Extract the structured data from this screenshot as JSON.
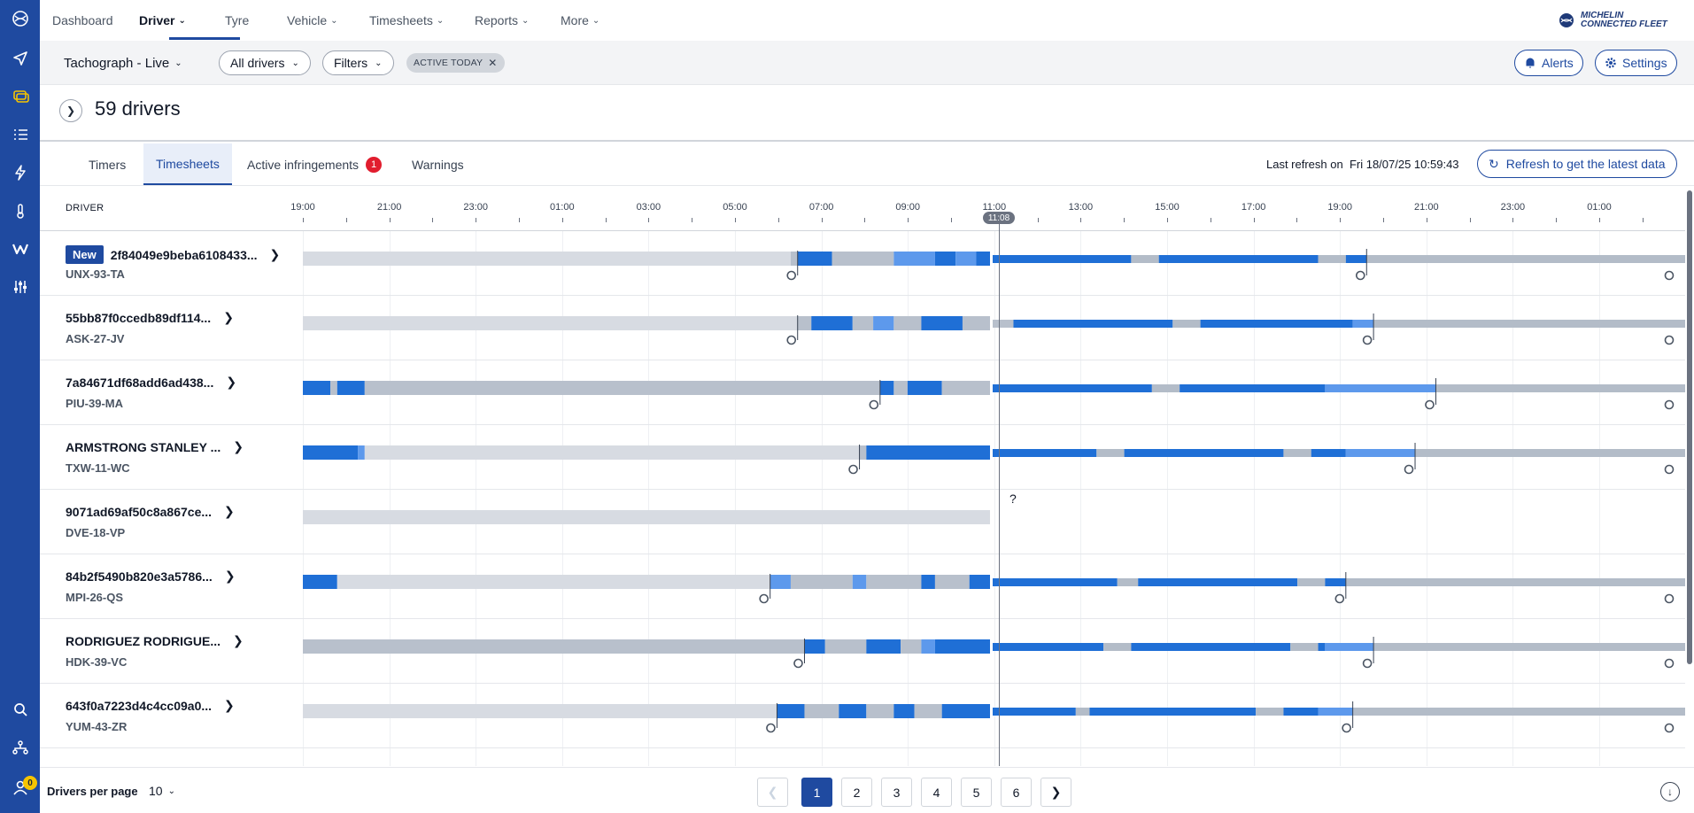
{
  "sidebar": {
    "badge_count": "0"
  },
  "nav": {
    "items": [
      {
        "label": "Dashboard"
      },
      {
        "label": "Driver"
      },
      {
        "label": "Tyre"
      },
      {
        "label": "Vehicle"
      },
      {
        "label": "Timesheets"
      },
      {
        "label": "Reports"
      },
      {
        "label": "More"
      }
    ],
    "logo_line1": "MICHELIN",
    "logo_line2": "CONNECTED FLEET"
  },
  "subbar": {
    "title": "Tachograph - Live",
    "drivers_filter": "All drivers",
    "filters_label": "Filters",
    "chip": "ACTIVE TODAY",
    "alerts": "Alerts",
    "settings": "Settings"
  },
  "header": {
    "drivers_count": "59 drivers"
  },
  "tabs": {
    "timers": "Timers",
    "timesheets": "Timesheets",
    "infringements": "Active infringements",
    "infringements_count": "1",
    "warnings": "Warnings",
    "last_refresh": "Last refresh on  Fri 18/07/25 10:59:43",
    "refresh_button": "Refresh to get the latest data"
  },
  "timeline": {
    "driver_column": "DRIVER",
    "ticks": [
      "19:00",
      "21:00",
      "23:00",
      "01:00",
      "03:00",
      "05:00",
      "07:00",
      "09:00",
      "11:00",
      "13:00",
      "15:00",
      "17:00",
      "19:00",
      "21:00",
      "23:00",
      "01:00"
    ],
    "now_label": "11:08",
    "colors": {
      "drive": "#1f6fd6",
      "work": "#5d99ec",
      "rest": "#b8c0cc",
      "avail": "#d7dbe2",
      "planned": "#b3bcc8"
    },
    "rows": [
      {
        "name": "2f84049e9beba6108433...",
        "plate": "UNX-93-TA",
        "new": "New",
        "segments": [
          [
            "avail",
            0,
            0.364
          ],
          [
            "rest",
            0.364,
            0.5
          ]
        ],
        "drive_hint": 0.364
      },
      {
        "name": "55bb87f0ccedb89df114...",
        "plate": "ASK-27-JV"
      },
      {
        "name": "7a84671df68add6ad438...",
        "plate": "PIU-39-MA"
      },
      {
        "name": "ARMSTRONG STANLEY ...",
        "plate": "TXW-11-WC"
      },
      {
        "name": "9071ad69af50c8a867ce...",
        "plate": "DVE-18-VP",
        "question": "?"
      },
      {
        "name": "84b2f5490b820e3a5786...",
        "plate": "MPI-26-QS"
      },
      {
        "name": "RODRIGUEZ RODRIGUE...",
        "plate": "HDK-39-VC"
      },
      {
        "name": "643f0a7223d4c4cc09a0...",
        "plate": "YUM-43-ZR"
      }
    ]
  },
  "footer": {
    "per_page_label": "Drivers per page",
    "per_page_value": "10",
    "pages": [
      "1",
      "2",
      "3",
      "4",
      "5",
      "6"
    ]
  }
}
